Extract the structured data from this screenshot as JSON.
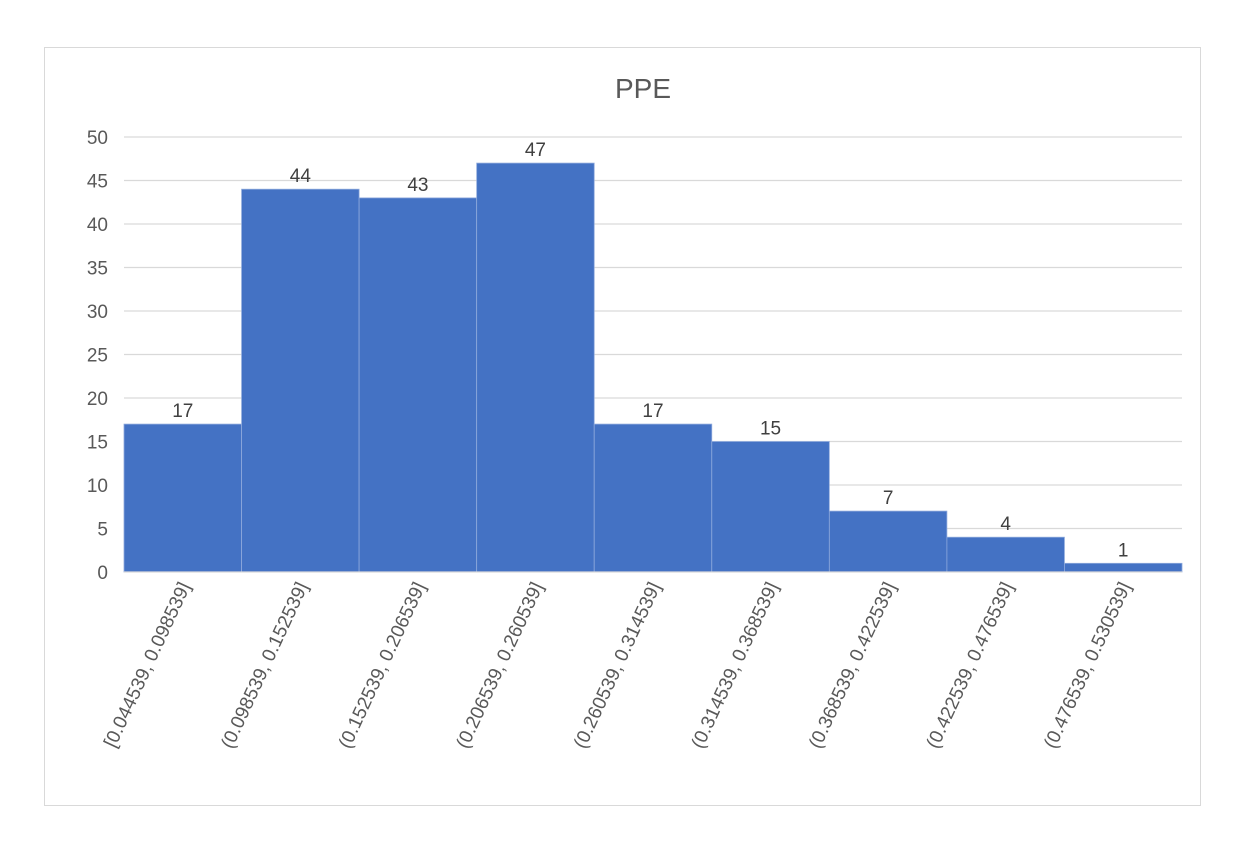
{
  "chart_data": {
    "type": "bar",
    "title": "PPE",
    "xlabel": "",
    "ylabel": "",
    "categories": [
      "[0.044539, 0.098539]",
      "(0.098539, 0.152539]",
      "(0.152539, 0.206539]",
      "(0.206539, 0.260539]",
      "(0.260539, 0.314539]",
      "(0.314539, 0.368539]",
      "(0.368539, 0.422539]",
      "(0.422539, 0.476539]",
      "(0.476539, 0.530539]"
    ],
    "values": [
      17,
      44,
      43,
      47,
      17,
      15,
      7,
      4,
      1
    ],
    "ylim": [
      0,
      50
    ],
    "yticks": [
      0,
      5,
      10,
      15,
      20,
      25,
      30,
      35,
      40,
      45,
      50
    ],
    "grid": true,
    "legend": "none",
    "data_labels": true,
    "bar_gap": "none (histogram)",
    "colors": {
      "bar": "#4472C4",
      "bar_separator": "#8faadc",
      "gridline": "#d9d9d9",
      "text": "#595959"
    }
  }
}
